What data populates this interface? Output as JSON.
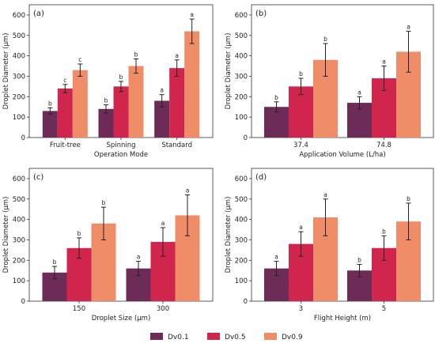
{
  "colors": {
    "Dv0.1": "#6d2b58",
    "Dv0.5": "#d0264e",
    "Dv0.9": "#ee8d68",
    "errorbar": "#222222",
    "axis": "#333333"
  },
  "legend": {
    "position": "bottom-center"
  },
  "chart_data": [
    {
      "type": "bar",
      "panel_label": "(a)",
      "title": "",
      "xlabel": "Operation Mode",
      "ylabel": "Droplet Diameter (μm)",
      "ylim": [
        0,
        650
      ],
      "yticks": [
        0,
        100,
        200,
        300,
        400,
        500,
        600
      ],
      "categories": [
        "Fruit-tree",
        "Spinning",
        "Standard"
      ],
      "series": [
        {
          "name": "Dv0.1",
          "values": [
            130,
            140,
            180
          ],
          "errors": [
            15,
            20,
            30
          ],
          "letters": [
            "b",
            "b",
            "a"
          ]
        },
        {
          "name": "Dv0.5",
          "values": [
            240,
            250,
            340
          ],
          "errors": [
            20,
            25,
            40
          ],
          "letters": [
            "c",
            "b",
            "a"
          ]
        },
        {
          "name": "Dv0.9",
          "values": [
            330,
            350,
            520
          ],
          "errors": [
            30,
            35,
            60
          ],
          "letters": [
            "c",
            "b",
            "a"
          ]
        }
      ]
    },
    {
      "type": "bar",
      "panel_label": "(b)",
      "title": "",
      "xlabel": "Application Volume (L/ha)",
      "ylabel": "Droplet Diameter (μm)",
      "ylim": [
        0,
        650
      ],
      "yticks": [
        0,
        100,
        200,
        300,
        400,
        500,
        600
      ],
      "categories": [
        "37.4",
        "74.8"
      ],
      "series": [
        {
          "name": "Dv0.1",
          "values": [
            150,
            170
          ],
          "errors": [
            25,
            30
          ],
          "letters": [
            "b",
            "a"
          ]
        },
        {
          "name": "Dv0.5",
          "values": [
            250,
            290
          ],
          "errors": [
            40,
            60
          ],
          "letters": [
            "b",
            "a"
          ]
        },
        {
          "name": "Dv0.9",
          "values": [
            380,
            420
          ],
          "errors": [
            80,
            100
          ],
          "letters": [
            "b",
            "a"
          ]
        }
      ]
    },
    {
      "type": "bar",
      "panel_label": "(c)",
      "title": "",
      "xlabel": "Droplet Size (μm)",
      "ylabel": "Droplet Diameter (μm)",
      "ylim": [
        0,
        650
      ],
      "yticks": [
        0,
        100,
        200,
        300,
        400,
        500,
        600
      ],
      "categories": [
        "150",
        "300"
      ],
      "series": [
        {
          "name": "Dv0.1",
          "values": [
            140,
            160
          ],
          "errors": [
            30,
            35
          ],
          "letters": [
            "b",
            "a"
          ]
        },
        {
          "name": "Dv0.5",
          "values": [
            260,
            290
          ],
          "errors": [
            50,
            70
          ],
          "letters": [
            "b",
            "a"
          ]
        },
        {
          "name": "Dv0.9",
          "values": [
            380,
            420
          ],
          "errors": [
            80,
            100
          ],
          "letters": [
            "b",
            "a"
          ]
        }
      ]
    },
    {
      "type": "bar",
      "panel_label": "(d)",
      "title": "",
      "xlabel": "Flight Height (m)",
      "ylabel": "Droplet Diameter (μm)",
      "ylim": [
        0,
        650
      ],
      "yticks": [
        0,
        100,
        200,
        300,
        400,
        500,
        600
      ],
      "categories": [
        "3",
        "5"
      ],
      "series": [
        {
          "name": "Dv0.1",
          "values": [
            160,
            150
          ],
          "errors": [
            35,
            30
          ],
          "letters": [
            "a",
            "b"
          ]
        },
        {
          "name": "Dv0.5",
          "values": [
            280,
            260
          ],
          "errors": [
            60,
            60
          ],
          "letters": [
            "a",
            "b"
          ]
        },
        {
          "name": "Dv0.9",
          "values": [
            410,
            390
          ],
          "errors": [
            90,
            90
          ],
          "letters": [
            "a",
            "b"
          ]
        }
      ]
    }
  ]
}
